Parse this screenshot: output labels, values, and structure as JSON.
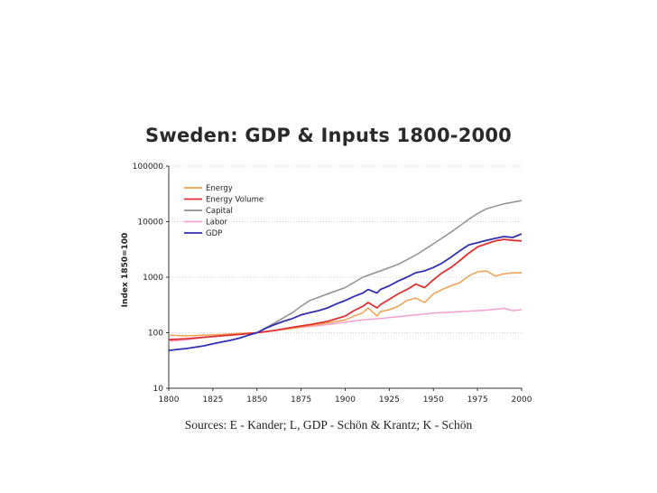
{
  "slide": {
    "title": "Sweden: GDP & Inputs 1800-2000",
    "sources": "Sources: E - Kander; L, GDP - Schön & Krantz; K - Schön"
  },
  "chart_data": {
    "type": "line",
    "title": "Sweden: GDP & Inputs 1800-2000",
    "xlabel": "",
    "ylabel": "Index 1850=100",
    "xlim": [
      1800,
      2000
    ],
    "ylim": [
      10,
      100000
    ],
    "yscale": "log",
    "grid": "horizontal dotted",
    "legend": "top-left",
    "x_ticks": [
      "1800",
      "1825",
      "1850",
      "1875",
      "1900",
      "1925",
      "1950",
      "1975",
      "2000"
    ],
    "y_ticks": [
      "10",
      "100",
      "1000",
      "10000",
      "100000"
    ],
    "series": [
      {
        "name": "Energy",
        "color": "#f0a050",
        "x": [
          1800,
          1810,
          1820,
          1830,
          1840,
          1850,
          1860,
          1870,
          1880,
          1890,
          1900,
          1905,
          1910,
          1913,
          1918,
          1920,
          1925,
          1930,
          1935,
          1940,
          1945,
          1950,
          1955,
          1960,
          1965,
          1970,
          1975,
          1980,
          1985,
          1990,
          1995,
          2000
        ],
        "y": [
          90,
          88,
          90,
          93,
          97,
          100,
          110,
          120,
          135,
          150,
          170,
          200,
          230,
          280,
          200,
          240,
          260,
          300,
          380,
          420,
          350,
          500,
          600,
          700,
          800,
          1050,
          1250,
          1300,
          1050,
          1150,
          1200,
          1200
        ]
      },
      {
        "name": "Energy Volume",
        "color": "#e03030",
        "x": [
          1800,
          1810,
          1820,
          1830,
          1840,
          1850,
          1860,
          1870,
          1880,
          1890,
          1900,
          1905,
          1910,
          1913,
          1918,
          1920,
          1925,
          1930,
          1935,
          1940,
          1945,
          1950,
          1955,
          1960,
          1965,
          1970,
          1975,
          1980,
          1985,
          1990,
          1995,
          2000
        ],
        "y": [
          75,
          78,
          83,
          88,
          93,
          100,
          110,
          125,
          140,
          160,
          200,
          250,
          300,
          350,
          280,
          320,
          400,
          500,
          600,
          750,
          650,
          900,
          1200,
          1500,
          2000,
          2700,
          3500,
          4000,
          4500,
          4800,
          4600,
          4500
        ]
      },
      {
        "name": "Capital",
        "color": "#909090",
        "x": [
          1850,
          1860,
          1870,
          1875,
          1880,
          1890,
          1900,
          1910,
          1920,
          1930,
          1940,
          1950,
          1960,
          1970,
          1975,
          1980,
          1990,
          2000
        ],
        "y": [
          100,
          150,
          230,
          300,
          380,
          500,
          650,
          1000,
          1300,
          1700,
          2500,
          4000,
          6500,
          11000,
          14000,
          17000,
          21000,
          24000
        ]
      },
      {
        "name": "Labor",
        "color": "#f4a0d0",
        "x": [
          1800,
          1810,
          1820,
          1830,
          1840,
          1850,
          1860,
          1870,
          1880,
          1890,
          1900,
          1910,
          1920,
          1930,
          1940,
          1950,
          1960,
          1970,
          1980,
          1990,
          1995,
          2000
        ],
        "y": [
          70,
          75,
          82,
          88,
          94,
          100,
          110,
          120,
          130,
          140,
          155,
          170,
          180,
          195,
          210,
          225,
          235,
          245,
          255,
          275,
          250,
          260
        ]
      },
      {
        "name": "GDP",
        "color": "#3030b0",
        "x": [
          1800,
          1805,
          1810,
          1815,
          1820,
          1825,
          1830,
          1835,
          1840,
          1845,
          1850,
          1855,
          1860,
          1865,
          1870,
          1875,
          1880,
          1885,
          1890,
          1895,
          1900,
          1905,
          1910,
          1913,
          1918,
          1920,
          1925,
          1930,
          1935,
          1940,
          1945,
          1950,
          1955,
          1960,
          1965,
          1970,
          1975,
          1980,
          1985,
          1990,
          1995,
          2000
        ],
        "y": [
          48,
          50,
          52,
          55,
          58,
          63,
          68,
          73,
          80,
          90,
          100,
          120,
          140,
          160,
          180,
          210,
          230,
          250,
          280,
          330,
          380,
          450,
          520,
          600,
          520,
          600,
          700,
          850,
          1000,
          1200,
          1300,
          1500,
          1800,
          2300,
          3000,
          3800,
          4200,
          4600,
          5000,
          5400,
          5200,
          6000
        ]
      }
    ]
  }
}
